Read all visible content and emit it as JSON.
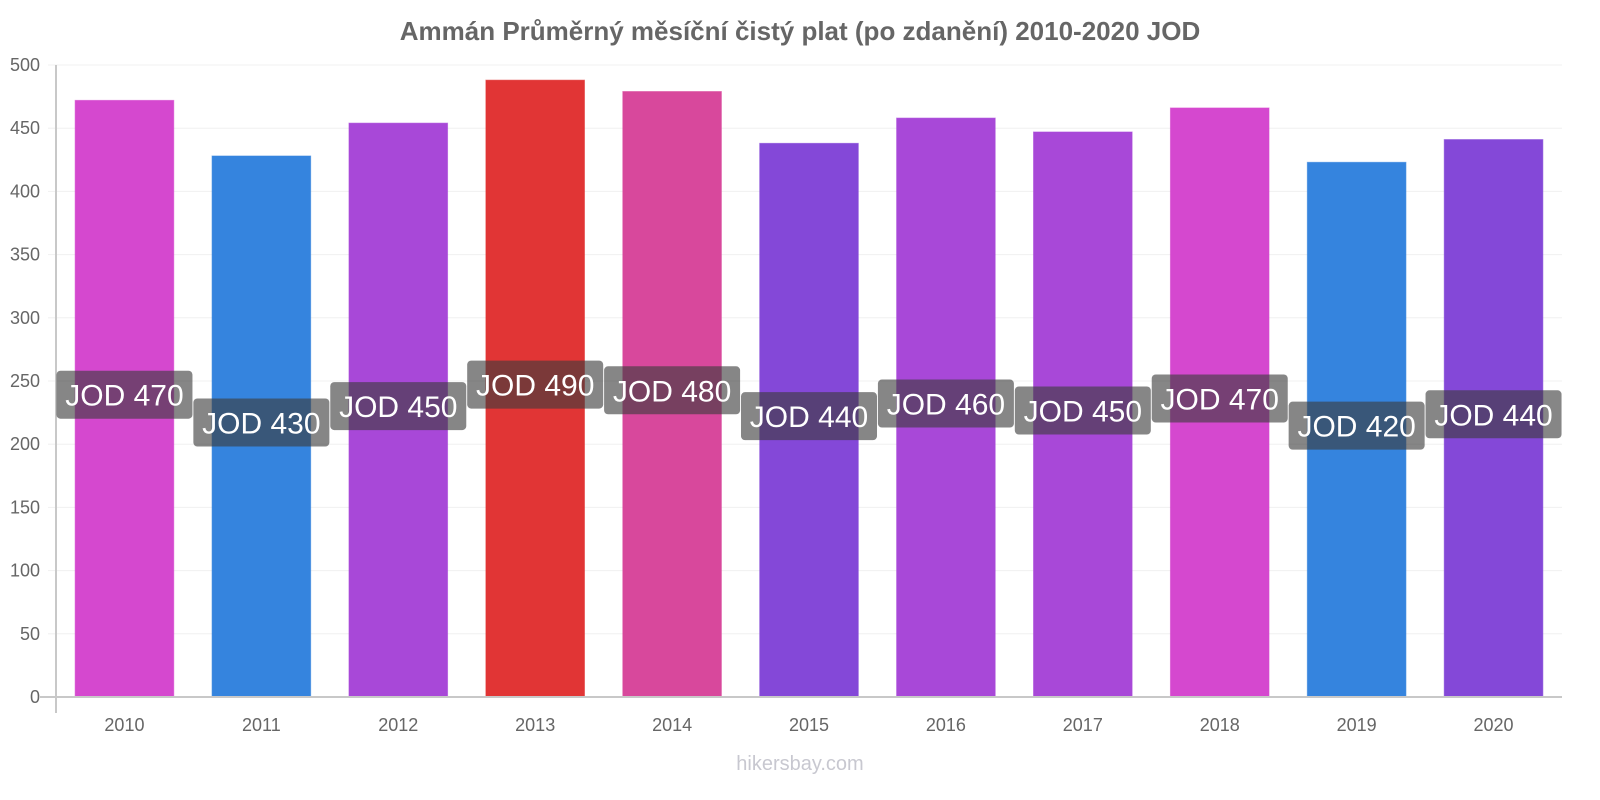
{
  "chart_data": {
    "type": "bar",
    "title": "Ammán Průměrný měsíční čistý plat (po zdanění) 2010-2020 JOD",
    "xlabel": "",
    "ylabel": "",
    "ylim": [
      0,
      500
    ],
    "yticks": [
      0,
      50,
      100,
      150,
      200,
      250,
      300,
      350,
      400,
      450,
      500
    ],
    "grid": true,
    "legend": "none",
    "categories": [
      "2010",
      "2011",
      "2012",
      "2013",
      "2014",
      "2015",
      "2016",
      "2017",
      "2018",
      "2019",
      "2020"
    ],
    "values": [
      472,
      428,
      454,
      488,
      479,
      438,
      458,
      447,
      466,
      423,
      441
    ],
    "data_labels": [
      "JOD 470",
      "JOD 430",
      "JOD 450",
      "JOD 490",
      "JOD 480",
      "JOD 440",
      "JOD 460",
      "JOD 450",
      "JOD 470",
      "JOD 420",
      "JOD 440"
    ],
    "colors": [
      "#d548cf",
      "#3584de",
      "#a848d8",
      "#e13535",
      "#d8489c",
      "#8448d8",
      "#a848d8",
      "#a848d8",
      "#d548cf",
      "#3584de",
      "#8448d8"
    ]
  },
  "watermark": "hikersbay.com"
}
